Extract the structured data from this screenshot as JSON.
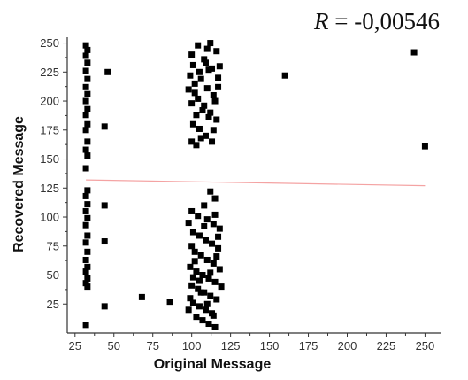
{
  "chart_data": {
    "type": "scatter",
    "title": "",
    "xlabel": "Original Message",
    "ylabel": "Recovered Message",
    "xlim": [
      20,
      260
    ],
    "ylim": [
      0,
      255
    ],
    "xticks": [
      25,
      50,
      75,
      100,
      125,
      150,
      175,
      200,
      225,
      250
    ],
    "yticks": [
      25,
      50,
      75,
      100,
      125,
      150,
      175,
      200,
      225,
      250
    ],
    "grid": false,
    "legend": "none",
    "annotation": {
      "symbol": "R",
      "text": " = -0,00546"
    },
    "colors": {
      "points": "#000000",
      "fit_line": "#f4a3a3",
      "axes": "#333333"
    },
    "fit_line": {
      "x": [
        32,
        250
      ],
      "y": [
        132,
        127
      ]
    },
    "series": [
      {
        "marker": "square",
        "points": [
          [
            32,
            248
          ],
          [
            33,
            244
          ],
          [
            32,
            239
          ],
          [
            33,
            233
          ],
          [
            32,
            226
          ],
          [
            33,
            219
          ],
          [
            32,
            212
          ],
          [
            33,
            206
          ],
          [
            32,
            200
          ],
          [
            33,
            193
          ],
          [
            32,
            188
          ],
          [
            33,
            180
          ],
          [
            32,
            175
          ],
          [
            33,
            165
          ],
          [
            32,
            158
          ],
          [
            33,
            153
          ],
          [
            32,
            142
          ],
          [
            33,
            123
          ],
          [
            32,
            118
          ],
          [
            33,
            111
          ],
          [
            32,
            105
          ],
          [
            33,
            99
          ],
          [
            32,
            93
          ],
          [
            33,
            84
          ],
          [
            32,
            78
          ],
          [
            33,
            70
          ],
          [
            32,
            63
          ],
          [
            33,
            57
          ],
          [
            32,
            53
          ],
          [
            33,
            47
          ],
          [
            32,
            43
          ],
          [
            33,
            40
          ],
          [
            32,
            7
          ],
          [
            44,
            178
          ],
          [
            44,
            110
          ],
          [
            44,
            79
          ],
          [
            44,
            23
          ],
          [
            46,
            225
          ],
          [
            68,
            31
          ],
          [
            86,
            27
          ],
          [
            160,
            222
          ],
          [
            243,
            242
          ],
          [
            250,
            161
          ],
          [
            100,
            240
          ],
          [
            104,
            248
          ],
          [
            108,
            236
          ],
          [
            112,
            250
          ],
          [
            116,
            243
          ],
          [
            101,
            231
          ],
          [
            105,
            225
          ],
          [
            109,
            233
          ],
          [
            113,
            228
          ],
          [
            117,
            220
          ],
          [
            102,
            215
          ],
          [
            106,
            219
          ],
          [
            110,
            211
          ],
          [
            114,
            205
          ],
          [
            100,
            198
          ],
          [
            104,
            202
          ],
          [
            108,
            196
          ],
          [
            112,
            190
          ],
          [
            116,
            184
          ],
          [
            101,
            180
          ],
          [
            105,
            176
          ],
          [
            109,
            170
          ],
          [
            113,
            165
          ],
          [
            103,
            162
          ],
          [
            111,
            186
          ],
          [
            107,
            192
          ],
          [
            115,
            200
          ],
          [
            98,
            210
          ],
          [
            118,
            230
          ],
          [
            99,
            222
          ],
          [
            102,
            207
          ],
          [
            114,
            175
          ],
          [
            106,
            168
          ],
          [
            110,
            245
          ],
          [
            117,
            212
          ],
          [
            103,
            188
          ],
          [
            111,
            227
          ],
          [
            100,
            165
          ],
          [
            112,
            122
          ],
          [
            115,
            116
          ],
          [
            108,
            110
          ],
          [
            100,
            105
          ],
          [
            104,
            101
          ],
          [
            110,
            98
          ],
          [
            114,
            94
          ],
          [
            118,
            90
          ],
          [
            101,
            87
          ],
          [
            105,
            84
          ],
          [
            109,
            80
          ],
          [
            113,
            77
          ],
          [
            117,
            73
          ],
          [
            102,
            70
          ],
          [
            106,
            67
          ],
          [
            110,
            63
          ],
          [
            114,
            60
          ],
          [
            99,
            57
          ],
          [
            103,
            53
          ],
          [
            107,
            50
          ],
          [
            111,
            47
          ],
          [
            115,
            44
          ],
          [
            100,
            41
          ],
          [
            104,
            38
          ],
          [
            108,
            35
          ],
          [
            112,
            32
          ],
          [
            116,
            29
          ],
          [
            101,
            26
          ],
          [
            105,
            23
          ],
          [
            109,
            20
          ],
          [
            113,
            17
          ],
          [
            103,
            14
          ],
          [
            107,
            11
          ],
          [
            111,
            8
          ],
          [
            115,
            5
          ],
          [
            99,
            30
          ],
          [
            118,
            55
          ],
          [
            117,
            83
          ],
          [
            98,
            95
          ],
          [
            116,
            66
          ],
          [
            100,
            75
          ],
          [
            105,
            45
          ],
          [
            110,
            25
          ],
          [
            114,
            15
          ],
          [
            102,
            62
          ],
          [
            108,
            92
          ],
          [
            112,
            52
          ],
          [
            106,
            35
          ],
          [
            119,
            40
          ],
          [
            98,
            20
          ],
          [
            101,
            48
          ],
          [
            115,
            102
          ]
        ]
      }
    ]
  }
}
